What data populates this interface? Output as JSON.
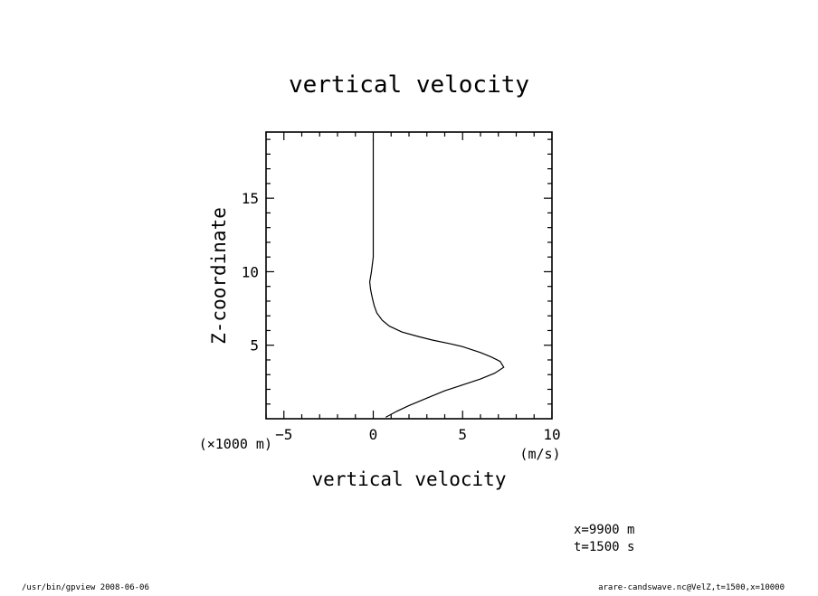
{
  "chart_data": {
    "type": "line",
    "title": "vertical velocity",
    "xlabel": "vertical velocity",
    "ylabel": "Z-coordinate",
    "x_unit": "(m/s)",
    "y_unit": "(×1000 m)",
    "xlim": [
      -6,
      10
    ],
    "ylim": [
      0,
      19.5
    ],
    "x_ticks": [
      -5,
      0,
      5,
      10
    ],
    "y_ticks": [
      5,
      10,
      15
    ],
    "grid": false,
    "series": [
      {
        "x": [
          0.7,
          1.3,
          2.0,
          3.0,
          4.0,
          5.0,
          6.0,
          6.8,
          7.3,
          7.1,
          6.6,
          6.0,
          5.5,
          5.0,
          4.3,
          3.3,
          2.5,
          1.6,
          0.9,
          0.5,
          0.2,
          0.05,
          -0.05,
          -0.15,
          -0.2,
          -0.1,
          0.0,
          0.0,
          0.0,
          0.0,
          0.0
        ],
        "y": [
          0.1,
          0.5,
          0.9,
          1.4,
          1.9,
          2.3,
          2.7,
          3.1,
          3.5,
          3.9,
          4.2,
          4.5,
          4.7,
          4.9,
          5.1,
          5.35,
          5.6,
          5.9,
          6.3,
          6.7,
          7.2,
          7.7,
          8.2,
          8.8,
          9.3,
          10.0,
          11.0,
          12.5,
          14.0,
          16.0,
          19.0
        ]
      }
    ]
  },
  "annotations": {
    "position": "x=9900  m",
    "time": "t=1500  s"
  },
  "footer": {
    "left": "/usr/bin/gpview   2008-06-06",
    "right": "arare-candswave.nc@VelZ,t=1500,x=10000"
  }
}
